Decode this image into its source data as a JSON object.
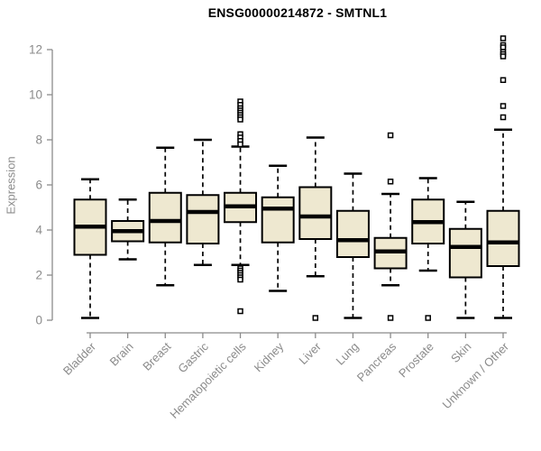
{
  "title": "ENSG00000214872 - SMTNL1",
  "colors": {
    "box_fill": "#EEE8D0",
    "box_stroke": "#000000",
    "median": "#000000",
    "whisker": "#000000",
    "outlier_stroke": "#000000",
    "axis": "#8b8b8b",
    "tick_text": "#8b8b8b",
    "title_text": "#000000",
    "background": "#ffffff"
  },
  "chart_data": {
    "type": "boxplot",
    "title": "ENSG00000214872 - SMTNL1",
    "xlabel": "",
    "ylabel": "Expression",
    "ylim": [
      0,
      12.5
    ],
    "yticks": [
      0,
      2,
      4,
      6,
      8,
      10,
      12
    ],
    "grid": "off",
    "legend": "none",
    "categories": [
      "Bladder",
      "Brain",
      "Breast",
      "Gastric",
      "Hematopoietic cells",
      "Kidney",
      "Liver",
      "Lung",
      "Pancreas",
      "Prostate",
      "Skin",
      "Unknown / Other"
    ],
    "series": [
      {
        "name": "Bladder",
        "whisker_low": 0.1,
        "q1": 2.9,
        "median": 4.15,
        "q3": 5.35,
        "whisker_high": 6.25,
        "outliers": []
      },
      {
        "name": "Brain",
        "whisker_low": 2.7,
        "q1": 3.5,
        "median": 3.95,
        "q3": 4.4,
        "whisker_high": 5.35,
        "outliers": []
      },
      {
        "name": "Breast",
        "whisker_low": 1.55,
        "q1": 3.45,
        "median": 4.4,
        "q3": 5.65,
        "whisker_high": 7.65,
        "outliers": []
      },
      {
        "name": "Gastric",
        "whisker_low": 2.45,
        "q1": 3.4,
        "median": 4.8,
        "q3": 5.55,
        "whisker_high": 8.0,
        "outliers": []
      },
      {
        "name": "Hematopoietic cells",
        "whisker_low": 2.45,
        "q1": 4.35,
        "median": 5.05,
        "q3": 5.65,
        "whisker_high": 7.7,
        "outliers": [
          9.7,
          9.55,
          9.4,
          9.3,
          9.2,
          9.1,
          9.0,
          8.9,
          8.25,
          8.1,
          7.95,
          7.8,
          2.3,
          2.2,
          2.1,
          2.0,
          1.9,
          1.8,
          0.4
        ]
      },
      {
        "name": "Kidney",
        "whisker_low": 1.3,
        "q1": 3.45,
        "median": 4.95,
        "q3": 5.45,
        "whisker_high": 6.85,
        "outliers": []
      },
      {
        "name": "Liver",
        "whisker_low": 1.95,
        "q1": 3.6,
        "median": 4.6,
        "q3": 5.9,
        "whisker_high": 8.1,
        "outliers": [
          0.1
        ]
      },
      {
        "name": "Lung",
        "whisker_low": 0.1,
        "q1": 2.8,
        "median": 3.55,
        "q3": 4.85,
        "whisker_high": 6.5,
        "outliers": []
      },
      {
        "name": "Pancreas",
        "whisker_low": 1.55,
        "q1": 2.3,
        "median": 3.05,
        "q3": 3.65,
        "whisker_high": 5.6,
        "outliers": [
          8.2,
          6.15,
          0.1
        ]
      },
      {
        "name": "Prostate",
        "whisker_low": 2.2,
        "q1": 3.4,
        "median": 4.35,
        "q3": 5.35,
        "whisker_high": 6.3,
        "outliers": [
          0.1
        ]
      },
      {
        "name": "Skin",
        "whisker_low": 0.1,
        "q1": 1.9,
        "median": 3.25,
        "q3": 4.05,
        "whisker_high": 5.25,
        "outliers": []
      },
      {
        "name": "Unknown / Other",
        "whisker_low": 0.1,
        "q1": 2.4,
        "median": 3.45,
        "q3": 4.85,
        "whisker_high": 8.45,
        "outliers": [
          12.5,
          12.2,
          12.1,
          11.9,
          11.8,
          11.7,
          10.65,
          9.5,
          9.0
        ]
      }
    ]
  }
}
